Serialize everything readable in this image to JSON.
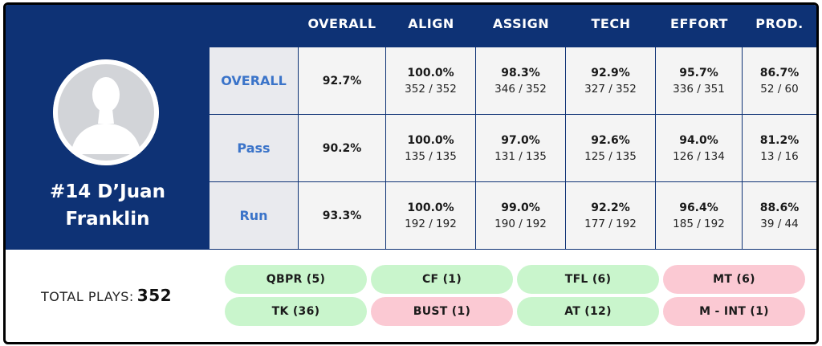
{
  "player": {
    "name": "#14 D’Juan Franklin",
    "name_line1": "#14 D’Juan",
    "name_line2": "Franklin",
    "avatar_icon": "person-silhouette-icon"
  },
  "columns": [
    "OVERALL",
    "ALIGN",
    "ASSIGN",
    "TECH",
    "EFFORT",
    "PROD."
  ],
  "rows": [
    {
      "label": "OVERALL",
      "overall": "92.7%",
      "cells": [
        {
          "pct": "100.0%",
          "frac": "352 / 352"
        },
        {
          "pct": "98.3%",
          "frac": "346 / 352"
        },
        {
          "pct": "92.9%",
          "frac": "327 / 352"
        },
        {
          "pct": "95.7%",
          "frac": "336 / 351"
        },
        {
          "pct": "86.7%",
          "frac": "52 / 60"
        }
      ]
    },
    {
      "label": "Pass",
      "overall": "90.2%",
      "cells": [
        {
          "pct": "100.0%",
          "frac": "135 / 135"
        },
        {
          "pct": "97.0%",
          "frac": "131 / 135"
        },
        {
          "pct": "92.6%",
          "frac": "125 / 135"
        },
        {
          "pct": "94.0%",
          "frac": "126 / 134"
        },
        {
          "pct": "81.2%",
          "frac": "13 / 16"
        }
      ]
    },
    {
      "label": "Run",
      "overall": "93.3%",
      "cells": [
        {
          "pct": "100.0%",
          "frac": "192 / 192"
        },
        {
          "pct": "99.0%",
          "frac": "190 / 192"
        },
        {
          "pct": "92.2%",
          "frac": "177 / 192"
        },
        {
          "pct": "96.4%",
          "frac": "185 / 192"
        },
        {
          "pct": "88.6%",
          "frac": "39 / 44"
        }
      ]
    }
  ],
  "total_plays": {
    "label": "TOTAL PLAYS:",
    "value": "352"
  },
  "badges": [
    {
      "label": "QBPR (5)",
      "status": "good"
    },
    {
      "label": "CF (1)",
      "status": "good"
    },
    {
      "label": "TFL (6)",
      "status": "good"
    },
    {
      "label": "MT (6)",
      "status": "bad"
    },
    {
      "label": "TK (36)",
      "status": "good"
    },
    {
      "label": "BUST (1)",
      "status": "bad"
    },
    {
      "label": "AT (12)",
      "status": "good"
    },
    {
      "label": "M - INT (1)",
      "status": "bad"
    }
  ],
  "colors": {
    "header_bg": "#0e3275",
    "row_label": "#3b74c9",
    "good_bg": "#c9f5cc",
    "bad_bg": "#fbc9d3"
  }
}
